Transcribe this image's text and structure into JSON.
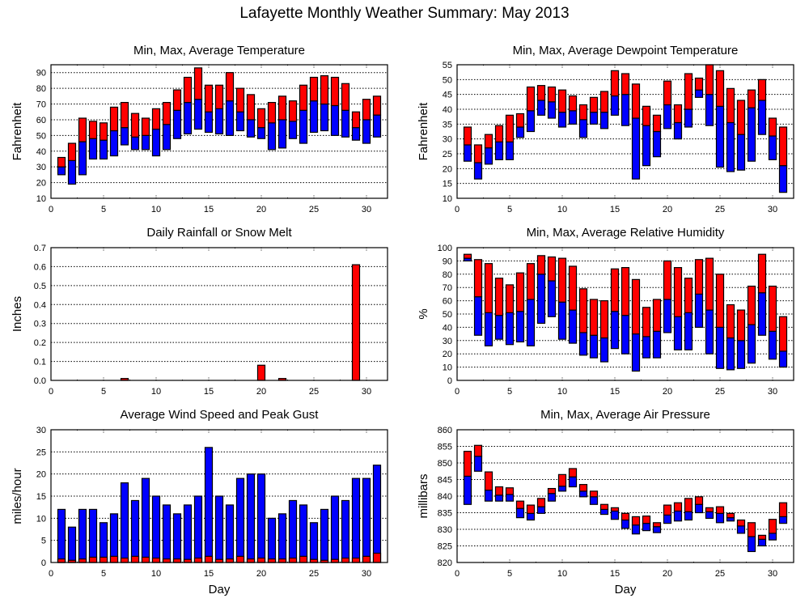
{
  "title": "Lafayette Monthly Weather Summary: May 2013",
  "colors": {
    "upper": "#ff0000",
    "lower": "#0000ff"
  },
  "chart_data": [
    {
      "id": "temperature",
      "type": "bar",
      "subtype": "floating-range",
      "title": "Min, Max, Average Temperature",
      "xlabel": "",
      "ylabel": "Fahrenheit",
      "xlim": [
        0,
        32
      ],
      "ylim": [
        10,
        95
      ],
      "xticks": [
        0,
        5,
        10,
        15,
        20,
        25,
        30
      ],
      "yticks": [
        10,
        20,
        30,
        40,
        50,
        60,
        70,
        80,
        90
      ],
      "grid": true,
      "x": [
        1,
        2,
        3,
        4,
        5,
        6,
        7,
        8,
        9,
        10,
        11,
        12,
        13,
        14,
        15,
        16,
        17,
        18,
        19,
        20,
        21,
        22,
        23,
        24,
        25,
        26,
        27,
        28,
        29,
        30,
        31
      ],
      "series": [
        {
          "name": "Min",
          "values": [
            25,
            19,
            25,
            35,
            35,
            37,
            44,
            41,
            41,
            37,
            41,
            48,
            51,
            54,
            52,
            51,
            50,
            53,
            49,
            48,
            41,
            42,
            48,
            45,
            52,
            53,
            50,
            49,
            47,
            45,
            49
          ]
        },
        {
          "name": "Average",
          "values": [
            30,
            34,
            46,
            48,
            47,
            53,
            55,
            49,
            50,
            54,
            57,
            66,
            71,
            73,
            65,
            67,
            72,
            65,
            60,
            55,
            58,
            60,
            59,
            66,
            72,
            70,
            69,
            66,
            55,
            60,
            63
          ]
        },
        {
          "name": "Max",
          "values": [
            36,
            45,
            61,
            59,
            58,
            68,
            71,
            64,
            61,
            67,
            71,
            79,
            87,
            93,
            82,
            82,
            90,
            80,
            76,
            67,
            71,
            75,
            72,
            82,
            87,
            88,
            87,
            83,
            65,
            73,
            75
          ]
        }
      ]
    },
    {
      "id": "dewpoint",
      "type": "bar",
      "subtype": "floating-range",
      "title": "Min, Max, Average Dewpoint Temperature",
      "xlabel": "",
      "ylabel": "Fahrenheit",
      "xlim": [
        0,
        32
      ],
      "ylim": [
        10,
        55
      ],
      "xticks": [
        0,
        5,
        10,
        15,
        20,
        25,
        30
      ],
      "yticks": [
        10,
        15,
        20,
        25,
        30,
        35,
        40,
        45,
        50,
        55
      ],
      "grid": true,
      "x": [
        1,
        2,
        3,
        4,
        5,
        6,
        7,
        8,
        9,
        10,
        11,
        12,
        13,
        14,
        15,
        16,
        17,
        18,
        19,
        20,
        21,
        22,
        23,
        24,
        25,
        26,
        27,
        28,
        29,
        30,
        31
      ],
      "series": [
        {
          "name": "Min",
          "values": [
            22.5,
            16.5,
            21.5,
            23,
            23,
            30.5,
            32.5,
            38,
            37,
            34,
            35,
            30.5,
            35,
            33.5,
            38,
            34.5,
            16.5,
            21,
            24,
            33.5,
            30,
            34,
            44,
            34.5,
            20.5,
            19,
            19.5,
            22.5,
            31.5,
            23,
            12
          ]
        },
        {
          "name": "Average",
          "values": [
            28,
            22,
            27,
            29,
            29,
            34,
            39.5,
            43,
            42.5,
            39,
            39.5,
            36.5,
            39,
            39,
            44.5,
            45,
            37,
            34.5,
            32.5,
            41.5,
            35.5,
            40,
            46.5,
            45,
            41,
            35.5,
            31.5,
            40.5,
            43,
            31,
            21
          ]
        },
        {
          "name": "Max",
          "values": [
            34,
            28,
            31.5,
            34.5,
            38,
            38.5,
            47.5,
            48,
            47.5,
            46.5,
            44.5,
            41.5,
            44,
            46,
            53,
            52,
            48.5,
            41,
            38,
            49.5,
            41.5,
            52,
            50.5,
            55,
            53,
            47,
            43,
            46.5,
            50,
            37,
            34
          ]
        }
      ]
    },
    {
      "id": "rainfall",
      "type": "bar",
      "title": "Daily Rainfall or Snow Melt",
      "xlabel": "",
      "ylabel": "Inches",
      "xlim": [
        0,
        32
      ],
      "ylim": [
        0,
        0.7
      ],
      "xticks": [
        0,
        5,
        10,
        15,
        20,
        25,
        30
      ],
      "yticks": [
        0.0,
        0.1,
        0.2,
        0.3,
        0.4,
        0.5,
        0.6,
        0.7
      ],
      "ytick_labels": [
        "0.0",
        "0.1",
        "0.2",
        "0.3",
        "0.4",
        "0.5",
        "0.6",
        "0.7"
      ],
      "grid": true,
      "x": [
        7,
        20,
        22,
        29
      ],
      "values": [
        0.01,
        0.08,
        0.01,
        0.61
      ]
    },
    {
      "id": "humidity",
      "type": "bar",
      "subtype": "floating-range",
      "title": "Min, Max, Average Relative Humidity",
      "xlabel": "",
      "ylabel": "%",
      "xlim": [
        0,
        32
      ],
      "ylim": [
        0,
        100
      ],
      "xticks": [
        0,
        5,
        10,
        15,
        20,
        25,
        30
      ],
      "yticks": [
        0,
        10,
        20,
        30,
        40,
        50,
        60,
        70,
        80,
        90,
        100
      ],
      "grid": true,
      "x": [
        1,
        2,
        3,
        4,
        5,
        6,
        7,
        8,
        9,
        10,
        11,
        12,
        13,
        14,
        15,
        16,
        17,
        18,
        19,
        20,
        21,
        22,
        23,
        24,
        25,
        26,
        27,
        28,
        29,
        30,
        31
      ],
      "series": [
        {
          "name": "Min",
          "values": [
            90,
            34,
            26,
            31,
            27,
            29,
            26,
            43,
            48,
            31,
            28,
            19,
            17,
            14,
            24,
            20,
            7,
            17,
            17,
            36,
            23,
            23,
            40,
            20,
            9,
            8,
            9,
            13,
            34,
            16,
            10
          ]
        },
        {
          "name": "Average",
          "values": [
            92,
            63,
            51,
            49,
            51,
            52,
            61,
            80,
            75,
            59,
            53,
            36,
            34,
            32,
            52,
            49,
            35,
            33,
            37,
            61,
            48,
            51,
            65,
            53,
            40,
            32,
            30,
            42,
            66,
            37,
            22
          ]
        },
        {
          "name": "Max",
          "values": [
            95,
            91,
            88,
            77,
            72,
            81,
            88,
            94,
            93,
            92,
            86,
            69,
            61,
            60,
            84,
            85,
            76,
            55,
            61,
            90,
            85,
            77,
            91,
            92,
            80,
            57,
            53,
            71,
            95,
            71,
            48
          ]
        }
      ]
    },
    {
      "id": "wind",
      "type": "bar",
      "subtype": "overlaid",
      "title": "Average Wind Speed and Peak Gust",
      "xlabel": "Day",
      "ylabel": "miles/hour",
      "xlim": [
        0,
        32
      ],
      "ylim": [
        0,
        30
      ],
      "xticks": [
        0,
        5,
        10,
        15,
        20,
        25,
        30
      ],
      "yticks": [
        0,
        5,
        10,
        15,
        20,
        25,
        30
      ],
      "grid": true,
      "x": [
        1,
        2,
        3,
        4,
        5,
        6,
        7,
        8,
        9,
        10,
        11,
        12,
        13,
        14,
        15,
        16,
        17,
        18,
        19,
        20,
        21,
        22,
        23,
        24,
        25,
        26,
        27,
        28,
        29,
        30,
        31
      ],
      "series": [
        {
          "name": "Peak Gust",
          "values": [
            12,
            8,
            12,
            12,
            9,
            11,
            18,
            14,
            19,
            15,
            13,
            11,
            13,
            15,
            26,
            15,
            13,
            19,
            20,
            20,
            10,
            11,
            14,
            13,
            9,
            12,
            15,
            14,
            19,
            19,
            22
          ]
        },
        {
          "name": "Average Wind Speed",
          "values": [
            0.8,
            0.5,
            0.8,
            1.2,
            1.2,
            1.4,
            1.0,
            1.4,
            1.2,
            1.0,
            0.8,
            0.8,
            0.7,
            1.0,
            1.4,
            0.7,
            0.8,
            1.4,
            0.8,
            1.0,
            0.8,
            0.8,
            1.0,
            1.4,
            0.7,
            0.5,
            0.7,
            1.0,
            1.0,
            1.4,
            2.1
          ]
        }
      ]
    },
    {
      "id": "pressure",
      "type": "bar",
      "subtype": "floating-range",
      "title": "Min, Max, Average Air Pressure",
      "xlabel": "Day",
      "ylabel": "millibars",
      "xlim": [
        0,
        32
      ],
      "ylim": [
        820,
        860
      ],
      "xticks": [
        0,
        5,
        10,
        15,
        20,
        25,
        30
      ],
      "yticks": [
        820,
        825,
        830,
        835,
        840,
        845,
        850,
        855,
        860
      ],
      "grid": true,
      "x": [
        1,
        2,
        3,
        4,
        5,
        6,
        7,
        8,
        9,
        10,
        11,
        12,
        13,
        14,
        15,
        16,
        17,
        18,
        19,
        20,
        21,
        22,
        23,
        24,
        25,
        26,
        27,
        28,
        29,
        30,
        31
      ],
      "series": [
        {
          "name": "Min",
          "values": [
            837.5,
            847.5,
            838.5,
            838.5,
            838.5,
            833.5,
            832.8,
            834.8,
            838.5,
            841.5,
            842.8,
            839.8,
            837.5,
            834.5,
            833,
            830.3,
            828.6,
            829.6,
            829,
            831.8,
            832.5,
            832.8,
            835,
            833.3,
            832,
            832.5,
            828.8,
            823.3,
            825,
            826.8,
            831.8
          ]
        },
        {
          "name": "Average",
          "values": [
            846,
            852,
            841.8,
            840.3,
            840.5,
            836.3,
            834.8,
            836.8,
            840.8,
            843,
            845.8,
            841.5,
            839.8,
            836,
            835.5,
            832.8,
            831.3,
            831.8,
            830.8,
            834.3,
            835.5,
            835.3,
            837.5,
            835.3,
            834.8,
            833.5,
            831,
            827.8,
            827,
            828.8,
            833.8
          ]
        },
        {
          "name": "Max",
          "values": [
            853.5,
            855.3,
            847.3,
            842.8,
            842.5,
            838.5,
            837.3,
            839.3,
            842.3,
            846.5,
            848.3,
            843.5,
            841.5,
            837.5,
            836.5,
            834.8,
            833.8,
            834,
            832,
            837.3,
            838,
            839.3,
            839.8,
            836.5,
            836.8,
            834.8,
            832.8,
            832,
            828.2,
            833,
            838
          ]
        }
      ]
    }
  ]
}
